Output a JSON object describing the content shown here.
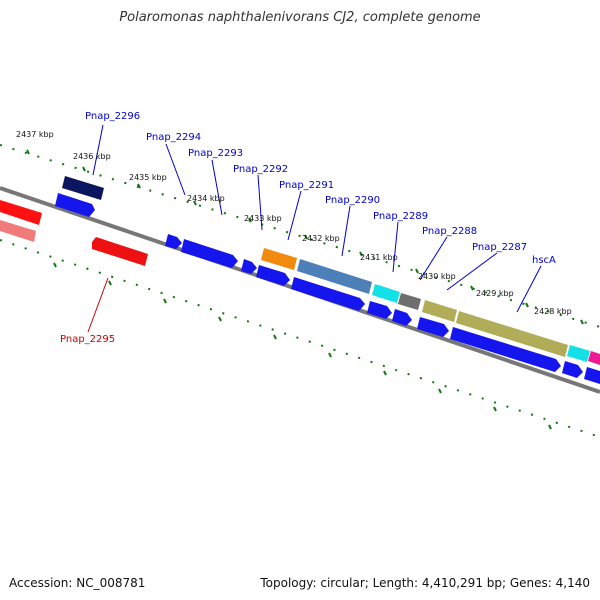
{
  "title": "Polaromonas naphthalenivorans CJ2, complete genome",
  "footer": {
    "accession": "Accession: NC_008781",
    "summary": "Topology: circular; Length: 4,410,291 bp; Genes: 4,140"
  },
  "kbp_labels": [
    "2437 kbp",
    "2436 kbp",
    "2435 kbp",
    "2434 kbp",
    "2433 kbp",
    "2432 kbp",
    "2431 kbp",
    "2430 kbp",
    "2429 kbp",
    "2428 kbp"
  ],
  "gene_labels": [
    "Pnap_2296",
    "Pnap_2294",
    "Pnap_2293",
    "Pnap_2292",
    "Pnap_2291",
    "Pnap_2290",
    "Pnap_2289",
    "Pnap_2288",
    "Pnap_2287",
    "hscA",
    "Pnap_2295"
  ],
  "colors": {
    "forward_label": "#0000cc",
    "reverse_label": "#cc0000",
    "backbone": "#777777",
    "ticks": "#117711"
  }
}
